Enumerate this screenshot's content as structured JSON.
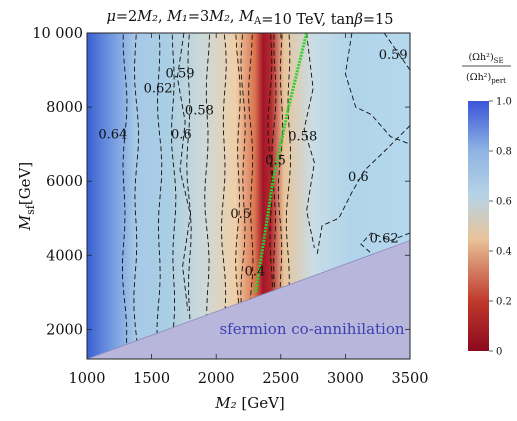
{
  "chart_data": {
    "type": "heatmap",
    "title": "μ=2M₂, M₁=3M₂, M_A=10 TeV, tanβ=15",
    "xlabel": "M₂ [GeV]",
    "ylabel": "M_sf[GeV]",
    "xlim": [
      1000,
      3500
    ],
    "ylim": [
      1200,
      10000
    ],
    "x_ticks": [
      "1000",
      "1500",
      "2000",
      "2500",
      "3000",
      "3500"
    ],
    "y_ticks": [
      "2000",
      "4000",
      "6000",
      "8000",
      "10 000"
    ],
    "colorbar": {
      "title_num": "(Ωh²)SE",
      "title_den": "(Ωh²)pert",
      "range": [
        0,
        1
      ],
      "ticks": [
        "0",
        "0.2",
        "0.4",
        "0.6",
        "0.8",
        "1.0"
      ],
      "colors": [
        "#8b0a1e",
        "#c0392b",
        "#e8c49a",
        "#b6d3e6",
        "#7fa8dd",
        "#3a55d8"
      ]
    },
    "contour_labels": [
      {
        "text": "0.64",
        "x": 1200,
        "y": 7150
      },
      {
        "text": "0.62",
        "x": 1550,
        "y": 8400
      },
      {
        "text": "0.59",
        "x": 1720,
        "y": 8800
      },
      {
        "text": "0.6",
        "x": 1730,
        "y": 7150
      },
      {
        "text": "0.58",
        "x": 1870,
        "y": 7800
      },
      {
        "text": "0.5",
        "x": 2190,
        "y": 5000
      },
      {
        "text": "0.4",
        "x": 2300,
        "y": 3450
      },
      {
        "text": "0.5",
        "x": 2460,
        "y": 6450
      },
      {
        "text": "0.58",
        "x": 2670,
        "y": 7100
      },
      {
        "text": "0.6",
        "x": 3100,
        "y": 6000
      },
      {
        "text": "0.62",
        "x": 3300,
        "y": 4350
      },
      {
        "text": "0.59",
        "x": 3370,
        "y": 9300
      }
    ],
    "green_curve": [
      [
        2305,
        3000
      ],
      [
        2360,
        4200
      ],
      [
        2440,
        6000
      ],
      [
        2560,
        8000
      ],
      [
        2700,
        10000
      ]
    ],
    "excluded_region": {
      "label": "sfermion co-annihilation",
      "boundary": [
        [
          1000,
          1200
        ],
        [
          3500,
          4400
        ]
      ]
    }
  }
}
